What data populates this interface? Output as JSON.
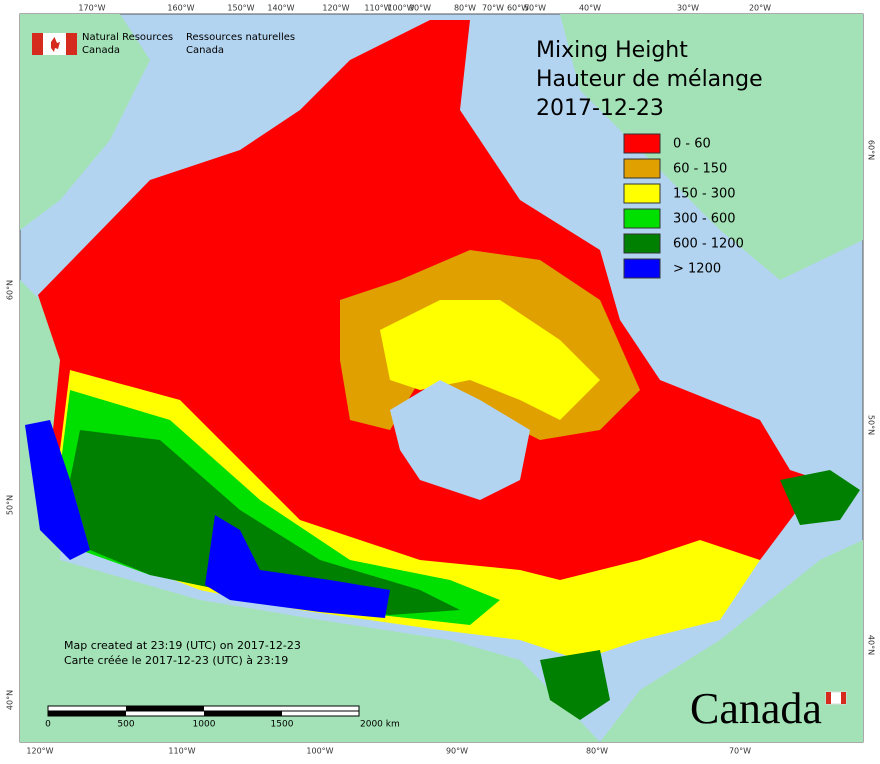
{
  "header": {
    "agency_en": [
      "Natural Resources",
      "Canada"
    ],
    "agency_fr": [
      "Ressources naturelles",
      "Canada"
    ]
  },
  "map": {
    "title": [
      "Mixing Height",
      "Hauteur de mélange",
      "2017-12-23"
    ],
    "legend": [
      {
        "label": "0 - 60",
        "color": "#ff0000"
      },
      {
        "label": "60 - 150",
        "color": "#e0a000"
      },
      {
        "label": "150 - 300",
        "color": "#ffff00"
      },
      {
        "label": "300 - 600",
        "color": "#00e000"
      },
      {
        "label": "600 - 1200",
        "color": "#008000"
      },
      {
        "label": "> 1200",
        "color": "#0000ff"
      }
    ],
    "top_labels": [
      "170°W",
      "160°W",
      "150°W",
      "140°W",
      "120°W",
      "110°W",
      "100°W",
      "90°W",
      "80°W",
      "70°W",
      "60°W",
      "50°W",
      "40°W",
      "30°W",
      "20°W"
    ],
    "bottom_labels": [
      "120°W",
      "110°W",
      "100°W",
      "90°W",
      "80°W",
      "70°W"
    ],
    "left_labels": [
      "60°N",
      "50°N",
      "40°N"
    ],
    "right_labels": [
      "60°N",
      "50°N",
      "40°N"
    ],
    "scale_labels": [
      "0",
      "500",
      "1000",
      "1500",
      "2000 km"
    ],
    "credits": [
      "Map created at 23:19 (UTC) on 2017-12-23",
      "Carte créée le 2017-12-23 (UTC) à 23:19"
    ],
    "wordmark": "Canada"
  }
}
